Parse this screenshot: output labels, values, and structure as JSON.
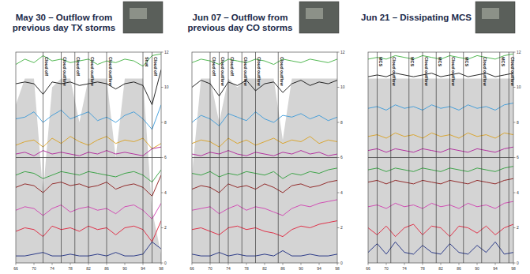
{
  "chart_data": [
    {
      "type": "line",
      "title": "May 30 – Outflow from previous day TX storms",
      "x": [
        66,
        68,
        70,
        72,
        74,
        76,
        78,
        80,
        82,
        84,
        86,
        88,
        90,
        92,
        94,
        96,
        98
      ],
      "xlim": [
        66,
        98
      ],
      "xticks": [
        66,
        70,
        74,
        78,
        82,
        86,
        90,
        94,
        98
      ],
      "ylim": [
        0,
        12
      ],
      "yticks": [
        0,
        2,
        4,
        6,
        8,
        10,
        12
      ],
      "series": [
        {
          "type": "area",
          "color": "#d4d4d4",
          "values": [
            9,
            10.5,
            10.5,
            4,
            10,
            10.5,
            10.5,
            8,
            10.5,
            10.5,
            10.5,
            6,
            10.5,
            10.5,
            10.5,
            3,
            0.5
          ]
        },
        {
          "color": "#3fb03f",
          "values": [
            11.3,
            11.6,
            11.4,
            11.8,
            11.5,
            11.6,
            11.4,
            11.5,
            11.6,
            11.3,
            11.5,
            11.4,
            11.6,
            11.5,
            11.2,
            11.8,
            11.9
          ]
        },
        {
          "color": "#111111",
          "values": [
            10.2,
            10.3,
            10.2,
            9.6,
            10.3,
            10.2,
            10.3,
            10.1,
            10.2,
            10.3,
            10.2,
            9.9,
            10.2,
            10.3,
            10.1,
            9.0,
            11.0
          ]
        },
        {
          "color": "#3a9ad9",
          "values": [
            8.2,
            8.3,
            8.6,
            8.0,
            8.4,
            8.7,
            8.2,
            8.4,
            8.6,
            8.1,
            8.3,
            8.0,
            8.4,
            8.6,
            8.2,
            7.6,
            9.0
          ]
        },
        {
          "color": "#d9a020",
          "values": [
            6.7,
            6.9,
            7.0,
            6.6,
            7.1,
            6.8,
            7.2,
            6.9,
            6.7,
            7.0,
            7.2,
            6.8,
            7.0,
            6.9,
            7.1,
            6.5,
            6.8
          ]
        },
        {
          "color": "#b0209a",
          "values": [
            6.2,
            6.3,
            6.1,
            6.4,
            6.2,
            6.3,
            6.2,
            6.1,
            6.3,
            6.2,
            6.4,
            6.2,
            6.3,
            6.2,
            6.1,
            6.5,
            6.6
          ]
        },
        {
          "color": "#2e9e3a",
          "values": [
            5.0,
            5.2,
            5.1,
            4.8,
            5.0,
            5.2,
            5.1,
            5.0,
            5.2,
            5.1,
            5.0,
            4.9,
            5.1,
            5.2,
            5.0,
            4.6,
            5.3
          ]
        },
        {
          "color": "#8b1a1a",
          "values": [
            4.3,
            4.5,
            4.4,
            4.0,
            4.5,
            4.6,
            4.4,
            4.5,
            4.3,
            4.4,
            4.6,
            4.2,
            4.4,
            4.5,
            4.3,
            3.8,
            5.0
          ]
        },
        {
          "color": "#d040b0",
          "values": [
            3.0,
            3.2,
            3.1,
            2.7,
            3.1,
            3.3,
            2.9,
            3.1,
            3.2,
            3.0,
            3.1,
            2.8,
            3.2,
            3.3,
            3.0,
            2.5,
            3.4
          ]
        },
        {
          "color": "#e0203a",
          "values": [
            1.8,
            2.0,
            1.9,
            1.5,
            2.1,
            1.9,
            2.0,
            1.8,
            2.1,
            1.9,
            2.0,
            1.6,
            2.0,
            2.1,
            1.9,
            1.2,
            2.4
          ]
        },
        {
          "color": "#1a2a80",
          "values": [
            0.4,
            0.4,
            0.5,
            0.6,
            0.4,
            0.4,
            0.5,
            0.4,
            0.4,
            0.5,
            0.4,
            0.6,
            0.4,
            0.4,
            0.5,
            1.2,
            0.8
          ]
        }
      ],
      "annotations": [
        {
          "x": 72,
          "label": "Cloud off"
        },
        {
          "x": 76,
          "label": "Cloud outflow"
        },
        {
          "x": 79,
          "label": "Cloud off"
        },
        {
          "x": 82,
          "label": "Cloud outflow"
        },
        {
          "x": 86,
          "label": "Cloud outflow"
        },
        {
          "x": 94,
          "label": "Strat"
        },
        {
          "x": 96,
          "label": "Cloud off"
        }
      ]
    },
    {
      "type": "line",
      "title": "Jun 07 – Outflow from previous day CO storms",
      "x": [
        66,
        68,
        70,
        72,
        74,
        76,
        78,
        80,
        82,
        84,
        86,
        88,
        90,
        92,
        94,
        96,
        98
      ],
      "xlim": [
        66,
        98
      ],
      "xticks": [
        66,
        70,
        74,
        78,
        82,
        86,
        90,
        94,
        98
      ],
      "ylim": [
        0,
        12
      ],
      "yticks": [
        0,
        2,
        4,
        6,
        8,
        10,
        12
      ],
      "series": [
        {
          "type": "area",
          "color": "#d4d4d4",
          "values": [
            5,
            10.5,
            10.5,
            8,
            10.5,
            10,
            10.5,
            10.5,
            10.5,
            10.5,
            7,
            10.5,
            10.5,
            10.5,
            10.5,
            10.5,
            10.5
          ]
        },
        {
          "color": "#3fb03f",
          "values": [
            11.4,
            11.6,
            11.5,
            11.3,
            11.6,
            11.5,
            11.4,
            11.6,
            11.5,
            11.3,
            11.6,
            11.5,
            11.4,
            11.6,
            11.5,
            11.4,
            11.6
          ]
        },
        {
          "color": "#111111",
          "values": [
            10.0,
            10.4,
            10.2,
            9.5,
            10.3,
            10.1,
            10.4,
            9.8,
            10.2,
            10.3,
            9.7,
            10.2,
            10.4,
            10.1,
            10.3,
            10.2,
            10.4
          ]
        },
        {
          "color": "#3a9ad9",
          "values": [
            8.0,
            8.4,
            8.2,
            7.8,
            8.5,
            8.3,
            8.1,
            8.6,
            8.2,
            8.0,
            8.4,
            8.3,
            8.5,
            8.2,
            8.4,
            8.1,
            8.3
          ]
        },
        {
          "color": "#d9a020",
          "values": [
            6.8,
            7.0,
            6.9,
            6.6,
            7.1,
            6.8,
            7.0,
            6.7,
            6.9,
            7.1,
            6.8,
            7.0,
            6.9,
            7.2,
            6.8,
            7.0,
            6.9
          ]
        },
        {
          "color": "#b0209a",
          "values": [
            6.2,
            6.1,
            6.3,
            6.2,
            6.4,
            6.2,
            6.1,
            6.3,
            6.2,
            6.1,
            6.3,
            6.2,
            6.4,
            6.2,
            6.3,
            6.1,
            6.2
          ]
        },
        {
          "color": "#2e9e3a",
          "values": [
            5.1,
            5.0,
            5.2,
            4.9,
            5.1,
            5.0,
            5.2,
            5.1,
            5.0,
            5.2,
            4.8,
            5.1,
            5.0,
            5.2,
            5.1,
            5.3,
            5.4
          ]
        },
        {
          "color": "#8b1a1a",
          "values": [
            4.2,
            4.4,
            4.3,
            4.0,
            4.5,
            4.3,
            4.4,
            4.2,
            4.5,
            4.3,
            4.0,
            4.4,
            4.5,
            4.3,
            4.4,
            4.6,
            4.7
          ]
        },
        {
          "color": "#d040b0",
          "values": [
            3.0,
            3.1,
            3.2,
            2.8,
            3.1,
            3.3,
            3.0,
            3.2,
            3.1,
            2.9,
            2.7,
            3.1,
            3.3,
            3.2,
            3.4,
            3.5,
            3.6
          ]
        },
        {
          "color": "#e0203a",
          "values": [
            1.9,
            2.0,
            1.8,
            1.6,
            2.0,
            2.1,
            1.9,
            2.0,
            1.8,
            1.7,
            1.5,
            1.9,
            2.1,
            2.0,
            2.2,
            2.3,
            2.4
          ]
        },
        {
          "color": "#1a2a80",
          "values": [
            0.5,
            0.4,
            0.4,
            0.6,
            0.4,
            0.5,
            0.4,
            0.4,
            0.5,
            0.4,
            0.7,
            0.4,
            0.4,
            0.5,
            0.4,
            0.4,
            0.5
          ]
        }
      ],
      "annotations": [
        {
          "x": 70,
          "label": "Cloud off"
        },
        {
          "x": 72,
          "label": "Cloud outflow"
        },
        {
          "x": 74,
          "label": "Cloud off"
        },
        {
          "x": 77,
          "label": "Cloud outflow"
        },
        {
          "x": 80,
          "label": "Cloud outflow"
        },
        {
          "x": 85,
          "label": "Cloud outflow"
        }
      ]
    },
    {
      "type": "line",
      "title": "Jun 21 – Dissipating MCS",
      "x": [
        66,
        68,
        70,
        72,
        74,
        76,
        78,
        80,
        82,
        84,
        86,
        88,
        90,
        92,
        94,
        96,
        98
      ],
      "xlim": [
        66,
        98
      ],
      "xticks": [
        66,
        70,
        74,
        78,
        82,
        86,
        90,
        94,
        98
      ],
      "ylim": [
        0,
        12
      ],
      "yticks": [
        0,
        2,
        4,
        6,
        8,
        10,
        12
      ],
      "series": [
        {
          "type": "area",
          "color": "#d4d4d4",
          "values": [
            10.5,
            10.5,
            10.5,
            10.5,
            10.5,
            10.5,
            10.5,
            10.5,
            10.5,
            10.5,
            10.5,
            10.5,
            10.5,
            10.5,
            10.5,
            10.5,
            10.5
          ]
        },
        {
          "color": "#3fb03f",
          "values": [
            11.6,
            11.7,
            11.6,
            11.8,
            11.7,
            11.6,
            11.8,
            11.7,
            11.6,
            11.8,
            11.7,
            11.6,
            11.8,
            11.7,
            11.6,
            11.8,
            11.9
          ]
        },
        {
          "color": "#111111",
          "values": [
            10.6,
            10.7,
            10.6,
            10.8,
            10.7,
            10.6,
            10.7,
            10.8,
            10.6,
            10.7,
            10.8,
            10.6,
            10.7,
            10.8,
            10.6,
            10.7,
            10.8
          ]
        },
        {
          "color": "#3a9ad9",
          "values": [
            8.8,
            8.9,
            8.7,
            9.0,
            8.8,
            8.9,
            8.7,
            9.0,
            8.8,
            8.9,
            8.7,
            9.0,
            8.8,
            8.9,
            8.7,
            9.0,
            9.1
          ]
        },
        {
          "color": "#d9a020",
          "values": [
            7.2,
            7.3,
            7.1,
            7.4,
            7.2,
            7.3,
            7.1,
            7.4,
            7.2,
            7.3,
            7.1,
            7.4,
            7.2,
            7.3,
            7.1,
            7.4,
            7.3
          ]
        },
        {
          "color": "#b0209a",
          "values": [
            6.4,
            6.5,
            6.3,
            6.5,
            6.4,
            6.3,
            6.5,
            6.4,
            6.3,
            6.5,
            6.4,
            6.3,
            6.5,
            6.4,
            6.3,
            6.5,
            6.6
          ]
        },
        {
          "color": "#2e9e3a",
          "values": [
            5.3,
            5.4,
            5.2,
            5.4,
            5.3,
            5.2,
            5.4,
            5.3,
            5.2,
            5.4,
            5.3,
            5.2,
            5.4,
            5.3,
            5.2,
            5.4,
            5.5
          ]
        },
        {
          "color": "#8b1a1a",
          "values": [
            4.6,
            4.7,
            4.5,
            4.7,
            4.6,
            4.5,
            4.7,
            4.6,
            4.5,
            4.7,
            4.6,
            4.5,
            4.7,
            4.6,
            4.5,
            4.7,
            4.8
          ]
        },
        {
          "color": "#d040b0",
          "values": [
            3.2,
            3.3,
            3.1,
            3.4,
            3.2,
            3.3,
            3.1,
            3.4,
            3.2,
            3.3,
            3.1,
            3.4,
            3.2,
            3.3,
            3.1,
            3.4,
            3.5
          ]
        },
        {
          "color": "#e0203a",
          "values": [
            2.0,
            1.6,
            2.1,
            1.5,
            2.0,
            2.2,
            1.6,
            2.1,
            2.0,
            1.5,
            2.1,
            2.0,
            1.7,
            2.1,
            1.6,
            2.0,
            2.2
          ]
        },
        {
          "color": "#1a2a80",
          "values": [
            0.6,
            1.1,
            0.5,
            1.2,
            0.6,
            0.5,
            1.0,
            0.6,
            0.5,
            1.1,
            0.6,
            0.5,
            1.0,
            0.6,
            1.2,
            0.5,
            0.6
          ]
        }
      ],
      "annotations": [
        {
          "x": 68,
          "label": "MCS"
        },
        {
          "x": 71,
          "label": "Cloud outflow"
        },
        {
          "x": 75,
          "label": "MCS"
        },
        {
          "x": 78,
          "label": "Cloud outflow"
        },
        {
          "x": 81,
          "label": "MCS"
        },
        {
          "x": 84,
          "label": "Cloud outflow"
        },
        {
          "x": 87,
          "label": "MCS"
        },
        {
          "x": 91,
          "label": "Cloud outflow"
        },
        {
          "x": 95,
          "label": "MCS"
        },
        {
          "x": 97,
          "label": "Cloud outflow"
        }
      ]
    }
  ]
}
